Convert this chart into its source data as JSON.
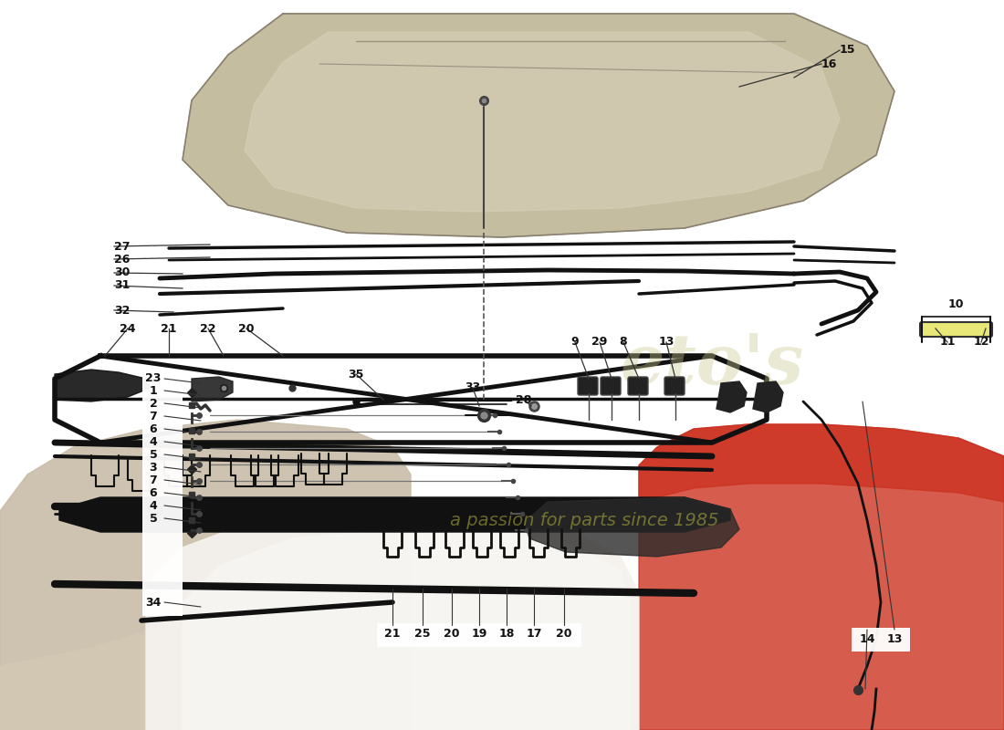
{
  "bg_color": "#ffffff",
  "watermark_color": "#c8c870",
  "watermark_alpha": 0.45,
  "etos_color": "#d0d0a0",
  "etos_alpha": 0.4,
  "car_beige": "#c8bda8",
  "car_beige2": "#d4c8b4",
  "car_red": "#cc3322",
  "lid_color": "#c0b898",
  "lid_edge": "#888070",
  "lid_light": "#d8d0b8",
  "frame_color": "#111111",
  "part_color": "#111111",
  "label_fs": 9,
  "leader_color": "#333333",
  "white_box": "#ffffff"
}
